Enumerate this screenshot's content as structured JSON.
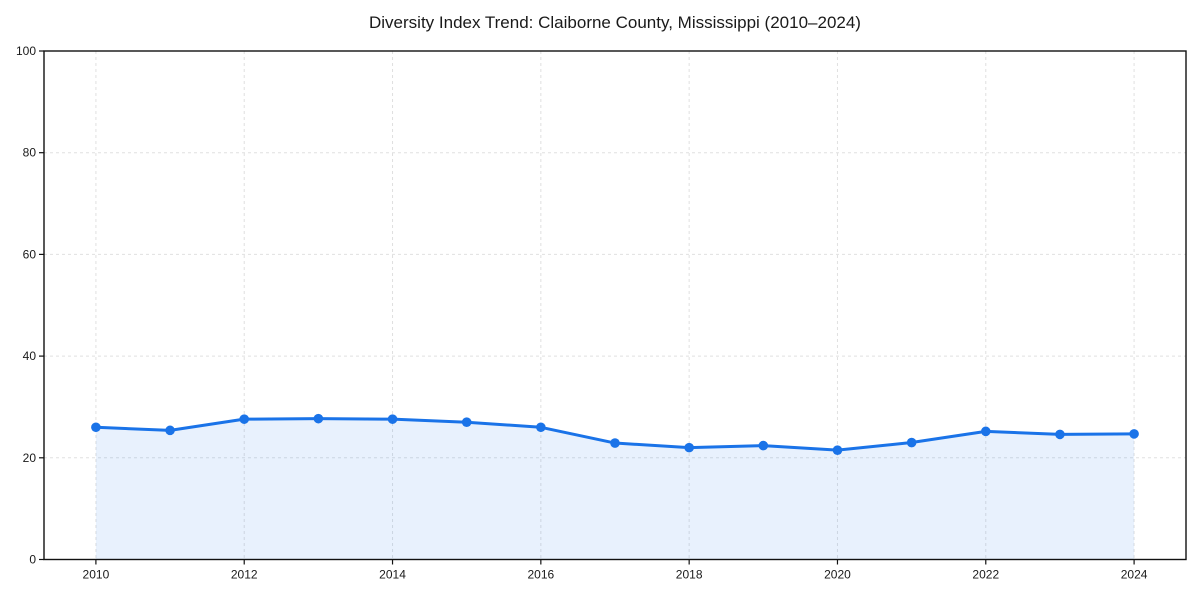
{
  "title": "Diversity Index Trend: Claiborne County, Mississippi (2010–2024)",
  "chart_data": {
    "type": "line",
    "title": "Diversity Index Trend: Claiborne County, Mississippi (2010–2024)",
    "x": [
      2010,
      2011,
      2012,
      2013,
      2014,
      2015,
      2016,
      2017,
      2018,
      2019,
      2020,
      2021,
      2022,
      2023,
      2024
    ],
    "series": [
      {
        "name": "Diversity Index",
        "values": [
          26.0,
          25.4,
          27.6,
          27.7,
          27.6,
          27.0,
          26.0,
          22.9,
          22.0,
          22.4,
          21.5,
          23.0,
          25.2,
          24.6,
          24.7
        ]
      }
    ],
    "xlabel": "",
    "ylabel": "",
    "xlim": [
      2009.3,
      2024.7
    ],
    "ylim": [
      0,
      100
    ],
    "x_ticks": [
      2010,
      2012,
      2014,
      2016,
      2018,
      2020,
      2022,
      2024
    ],
    "y_ticks": [
      0,
      20,
      40,
      60,
      80,
      100
    ],
    "grid": true,
    "legend": "none",
    "line_color": "#1a73e8",
    "marker_color": "#1a73e8",
    "fill_color": "rgba(26,115,232,0.10)",
    "grid_color": "#e0e0e0",
    "spine_color": "#111111"
  }
}
